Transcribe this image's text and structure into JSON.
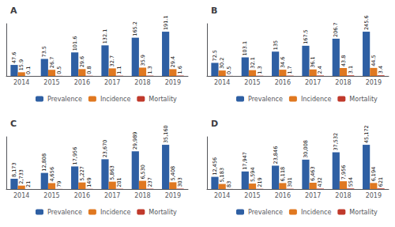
{
  "chart_data": [
    {
      "type": "bar",
      "title": "A",
      "categories": [
        "2014",
        "2015",
        "2016",
        "2017",
        "2018",
        "2019"
      ],
      "series": [
        {
          "name": "Prevalence",
          "color": "#2E5FA3",
          "values": [
            47.6,
            73.5,
            101.6,
            132.1,
            165.2,
            191.1
          ]
        },
        {
          "name": "Incidence",
          "color": "#E07820",
          "values": [
            15.9,
            26.7,
            29.6,
            32.7,
            35.9,
            29.4
          ]
        },
        {
          "name": "Mortality",
          "color": "#C0392B",
          "values": [
            0.1,
            0.5,
            0.8,
            1.1,
            1.3,
            1.6
          ]
        }
      ],
      "ylim": [
        0,
        225.498
      ],
      "grid": false,
      "legend": "bottom",
      "data_labels": true,
      "tick_labels": "x"
    },
    {
      "type": "bar",
      "title": "B",
      "categories": [
        "2014",
        "2015",
        "2016",
        "2017",
        "2018",
        "2019"
      ],
      "series": [
        {
          "name": "Prevalence",
          "color": "#2E5FA3",
          "values": [
            72.5,
            103.1,
            135.0,
            167.5,
            206.7,
            245.6
          ]
        },
        {
          "name": "Incidence",
          "color": "#E07820",
          "values": [
            30.2,
            32.1,
            34.6,
            36.1,
            43.8,
            44.5
          ]
        },
        {
          "name": "Mortality",
          "color": "#C0392B",
          "values": [
            0.5,
            1.3,
            1.7,
            2.4,
            3.1,
            3.4
          ]
        }
      ],
      "ylim": [
        0,
        289.808
      ],
      "grid": false,
      "legend": "bottom",
      "data_labels": true,
      "tick_labels": "x"
    },
    {
      "type": "bar",
      "title": "C",
      "categories": [
        "2014",
        "2015",
        "2016",
        "2017",
        "2018",
        "2019"
      ],
      "series": [
        {
          "name": "Prevalence",
          "color": "#2E5FA3",
          "values": [
            8173,
            12808,
            17956,
            23670,
            29989,
            35160
          ],
          "value_labels": [
            "8,173",
            "12,808",
            "17,956",
            "23,670",
            "29,989",
            "35,160"
          ]
        },
        {
          "name": "Incidence",
          "color": "#E07820",
          "values": [
            2733,
            4656,
            5227,
            5863,
            6530,
            5408
          ],
          "value_labels": [
            "2,733",
            "4,656",
            "5,227",
            "5,863",
            "6,530",
            "5,408"
          ]
        },
        {
          "name": "Mortality",
          "color": "#C0392B",
          "values": [
            21,
            79,
            149,
            201,
            237,
            303
          ]
        }
      ],
      "ylim": [
        0,
        41488.8
      ],
      "grid": false,
      "legend": "bottom",
      "data_labels": true,
      "tick_labels": "x"
    },
    {
      "type": "bar",
      "title": "D",
      "categories": [
        "2014",
        "2015",
        "2016",
        "2017",
        "2018",
        "2019"
      ],
      "series": [
        {
          "name": "Prevalence",
          "color": "#2E5FA3",
          "values": [
            12456,
            17947,
            23846,
            30008,
            37532,
            45172
          ],
          "value_labels": [
            "12,456",
            "17,947",
            "23,846",
            "30,008",
            "37,532",
            "45,172"
          ]
        },
        {
          "name": "Incidence",
          "color": "#E07820",
          "values": [
            5183,
            5594,
            6118,
            6463,
            7956,
            6194
          ],
          "value_labels": [
            "5,183",
            "5,594",
            "6,118",
            "6,463",
            "7,956",
            "6,194"
          ]
        },
        {
          "name": "Mortality",
          "color": "#C0392B",
          "values": [
            83,
            219,
            301,
            432,
            554,
            621
          ]
        }
      ],
      "ylim": [
        0,
        53302.96
      ],
      "grid": false,
      "legend": "bottom",
      "data_labels": true,
      "tick_labels": "x"
    }
  ]
}
